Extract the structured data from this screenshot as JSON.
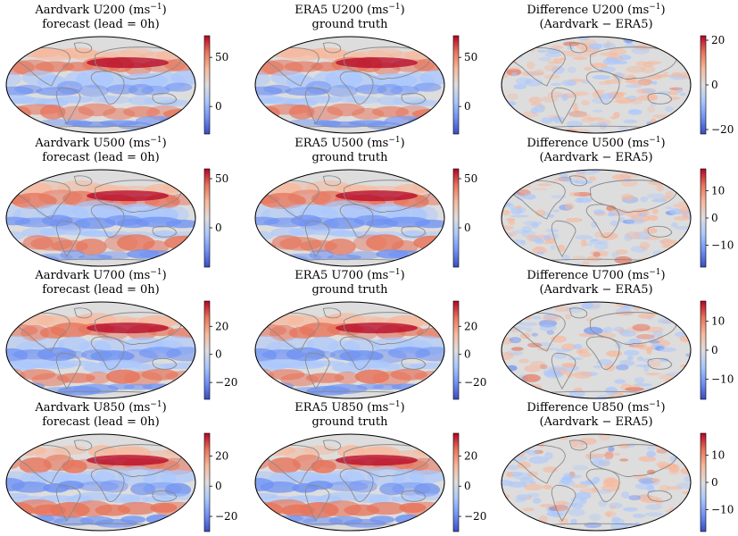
{
  "colors": {
    "cmap": [
      "#3b4cc0",
      "#6f92f3",
      "#aac7fd",
      "#dddddd",
      "#f7b89c",
      "#e7745b",
      "#b40426"
    ],
    "coast": "#8a8a8a",
    "outline": "#000000"
  },
  "chart_data": [
    {
      "type": "heatmap",
      "row": 0,
      "col": 0,
      "variable": "U200",
      "title1": "Aardvark U200 (ms",
      "title_sup": "−1",
      "title_close": ")",
      "title2": "forecast (lead = 0h)",
      "clim": [
        -28,
        72
      ],
      "ticks": [
        {
          "v": 50,
          "label": "50"
        },
        {
          "v": 0,
          "label": "0"
        }
      ]
    },
    {
      "type": "heatmap",
      "row": 0,
      "col": 1,
      "variable": "U200",
      "title1": "ERA5 U200 (ms",
      "title_sup": "−1",
      "title_close": ")",
      "title2": "ground truth",
      "clim": [
        -28,
        72
      ],
      "ticks": [
        {
          "v": 50,
          "label": "50"
        },
        {
          "v": 0,
          "label": "0"
        }
      ]
    },
    {
      "type": "heatmap",
      "row": 0,
      "col": 2,
      "variable": "U200",
      "title1": "Difference U200 (ms",
      "title_sup": "−1",
      "title_close": ")",
      "title2": "(Aardvark − ERA5)",
      "clim": [
        -22,
        22
      ],
      "ticks": [
        {
          "v": 20,
          "label": "20"
        },
        {
          "v": 0,
          "label": "0"
        },
        {
          "v": -20,
          "label": "−20"
        }
      ]
    },
    {
      "type": "heatmap",
      "row": 1,
      "col": 0,
      "variable": "U500",
      "title1": "Aardvark U500 (ms",
      "title_sup": "−1",
      "title_close": ")",
      "title2": "forecast (lead = 0h)",
      "clim": [
        -40,
        60
      ],
      "ticks": [
        {
          "v": 50,
          "label": "50"
        },
        {
          "v": 0,
          "label": "0"
        }
      ]
    },
    {
      "type": "heatmap",
      "row": 1,
      "col": 1,
      "variable": "U500",
      "title1": "ERA5 U500 (ms",
      "title_sup": "−1",
      "title_close": ")",
      "title2": "ground truth",
      "clim": [
        -40,
        60
      ],
      "ticks": [
        {
          "v": 50,
          "label": "50"
        },
        {
          "v": 0,
          "label": "0"
        }
      ]
    },
    {
      "type": "heatmap",
      "row": 1,
      "col": 2,
      "variable": "U500",
      "title1": "Difference U500 (ms",
      "title_sup": "−1",
      "title_close": ")",
      "title2": "(Aardvark − ERA5)",
      "clim": [
        -18,
        18
      ],
      "ticks": [
        {
          "v": 10,
          "label": "10"
        },
        {
          "v": 0,
          "label": "0"
        },
        {
          "v": -10,
          "label": "−10"
        }
      ]
    },
    {
      "type": "heatmap",
      "row": 2,
      "col": 0,
      "variable": "U700",
      "title1": "Aardvark U700 (ms",
      "title_sup": "−1",
      "title_close": ")",
      "title2": "forecast (lead = 0h)",
      "clim": [
        -32,
        38
      ],
      "ticks": [
        {
          "v": 20,
          "label": "20"
        },
        {
          "v": 0,
          "label": "0"
        },
        {
          "v": -20,
          "label": "−20"
        }
      ]
    },
    {
      "type": "heatmap",
      "row": 2,
      "col": 1,
      "variable": "U700",
      "title1": "ERA5 U700 (ms",
      "title_sup": "−1",
      "title_close": ")",
      "title2": "ground truth",
      "clim": [
        -32,
        38
      ],
      "ticks": [
        {
          "v": 20,
          "label": "20"
        },
        {
          "v": 0,
          "label": "0"
        },
        {
          "v": -20,
          "label": "−20"
        }
      ]
    },
    {
      "type": "heatmap",
      "row": 2,
      "col": 2,
      "variable": "U700",
      "title1": "Difference U700 (ms",
      "title_sup": "−1",
      "title_close": ")",
      "title2": "(Aardvark − ERA5)",
      "clim": [
        -17,
        17
      ],
      "ticks": [
        {
          "v": 10,
          "label": "10"
        },
        {
          "v": 0,
          "label": "0"
        },
        {
          "v": -10,
          "label": "−10"
        }
      ]
    },
    {
      "type": "heatmap",
      "row": 3,
      "col": 0,
      "variable": "U850",
      "title1": "Aardvark U850 (ms",
      "title_sup": "−1",
      "title_close": ")",
      "title2": "forecast (lead = 0h)",
      "clim": [
        -30,
        35
      ],
      "ticks": [
        {
          "v": 20,
          "label": "20"
        },
        {
          "v": 0,
          "label": "0"
        },
        {
          "v": -20,
          "label": "−20"
        }
      ]
    },
    {
      "type": "heatmap",
      "row": 3,
      "col": 1,
      "variable": "U850",
      "title1": "ERA5 U850 (ms",
      "title_sup": "−1",
      "title_close": ")",
      "title2": "ground truth",
      "clim": [
        -30,
        35
      ],
      "ticks": [
        {
          "v": 20,
          "label": "20"
        },
        {
          "v": 0,
          "label": "0"
        },
        {
          "v": -20,
          "label": "−20"
        }
      ]
    },
    {
      "type": "heatmap",
      "row": 3,
      "col": 2,
      "variable": "U850",
      "title1": "Difference U850 (ms",
      "title_sup": "−1",
      "title_close": ")",
      "title2": "(Aardvark − ERA5)",
      "clim": [
        -18,
        18
      ],
      "ticks": [
        {
          "v": 10,
          "label": "10"
        },
        {
          "v": 0,
          "label": "0"
        },
        {
          "v": -10,
          "label": "−10"
        }
      ]
    }
  ]
}
